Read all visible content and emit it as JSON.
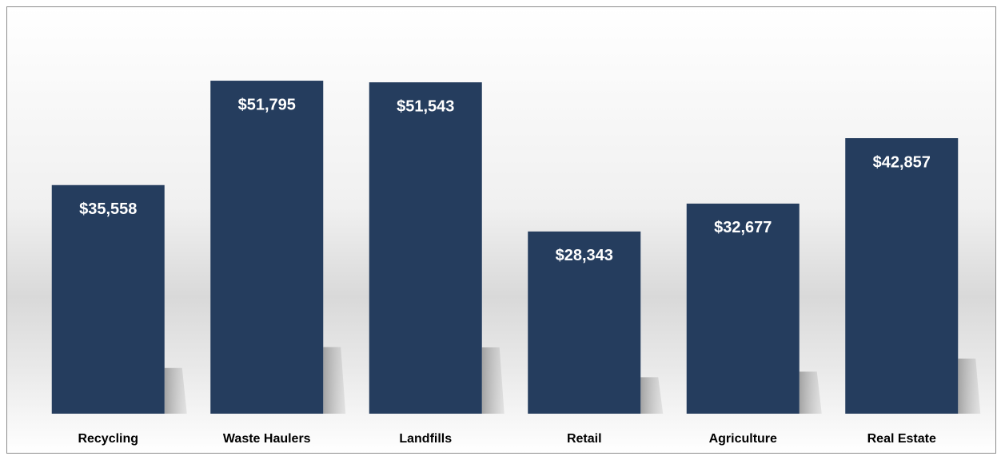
{
  "chart_data": {
    "type": "bar",
    "categories": [
      "Recycling",
      "Waste Haulers",
      "Landfills",
      "Retail",
      "Agriculture",
      "Real Estate"
    ],
    "values": [
      35558,
      51795,
      51543,
      28343,
      32677,
      42857
    ],
    "value_labels": [
      "$35,558",
      "$51,795",
      "$51,543",
      "$28,343",
      "$32,677",
      "$42,857"
    ],
    "color": "#253d5e",
    "ylim": [
      0,
      60000
    ]
  }
}
